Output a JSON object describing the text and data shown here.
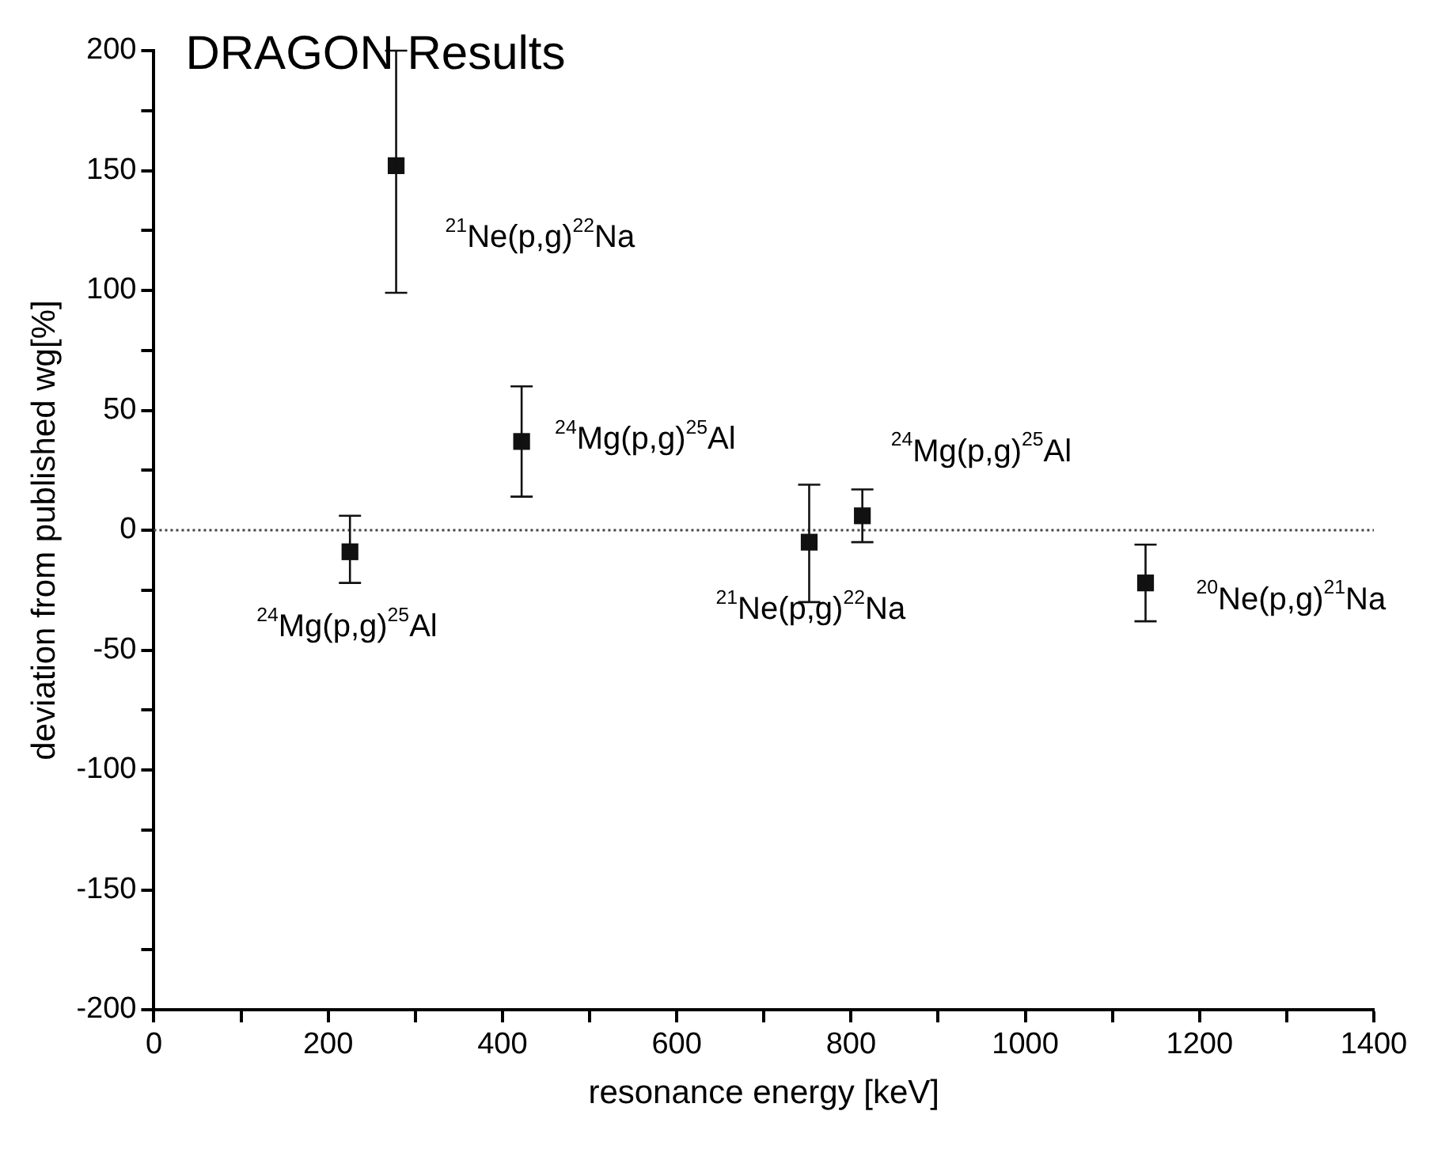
{
  "chart_data": {
    "type": "scatter",
    "title": "DRAGON Results",
    "xlabel": "resonance energy [keV]",
    "ylabel": "deviation from published wg[%]",
    "x": [
      225,
      278,
      422,
      752,
      813,
      1138
    ],
    "values": [
      -9,
      152,
      37,
      -5,
      6,
      -22
    ],
    "errors": [
      [
        -22,
        6
      ],
      [
        99,
        200
      ],
      [
        14,
        60
      ],
      [
        -30,
        19
      ],
      [
        -5,
        17
      ],
      [
        -38,
        -6
      ]
    ],
    "color": "#111111",
    "marker": "square",
    "grid": false,
    "legend": false,
    "xlim": [
      0,
      1400
    ],
    "ylim": [
      -200,
      200
    ],
    "xticks": [
      0,
      {
        "value": 100,
        "label": null
      },
      200,
      {
        "value": 300,
        "label": null
      },
      400,
      {
        "value": 500,
        "label": null
      },
      600,
      {
        "value": 700,
        "label": null
      },
      800,
      {
        "value": 900,
        "label": null
      },
      1000,
      {
        "value": 1100,
        "label": null
      },
      1200,
      {
        "value": 1300,
        "label": null
      },
      1400
    ],
    "yticks": [
      -200,
      {
        "value": -175,
        "label": null
      },
      -150,
      {
        "value": -125,
        "label": null
      },
      -100,
      {
        "value": -75,
        "label": null
      },
      -50,
      {
        "value": -25,
        "label": null
      },
      0,
      {
        "value": 25,
        "label": null
      },
      50,
      {
        "value": 75,
        "label": null
      },
      100,
      {
        "value": 125,
        "label": null
      },
      150,
      {
        "value": 175,
        "label": null
      },
      200
    ],
    "ref_lines": [
      {
        "axis": "y",
        "value": 0,
        "line_style": "dotted",
        "color": "#444444"
      }
    ],
    "annotations": [
      {
        "text": "$^{21}$Ne(p,g)$^{22}$Na",
        "x": 278,
        "y": 152
      },
      {
        "text": "$^{24}$Mg(p,g)$^{25}$Al",
        "x": 422,
        "y": 37
      },
      {
        "text": "$^{24}$Mg(p,g)$^{25}$Al",
        "x": 225,
        "y": -9
      },
      {
        "text": "$^{21}$Ne(p,g)$^{22}$Na",
        "x": 752,
        "y": -5
      },
      {
        "text": "$^{24}$Mg(p,g)$^{25}$Al",
        "x": 813,
        "y": 6
      },
      {
        "text": "$^{20}$Ne(p,g)$^{21}$Na",
        "x": 1138,
        "y": -22
      }
    ]
  }
}
